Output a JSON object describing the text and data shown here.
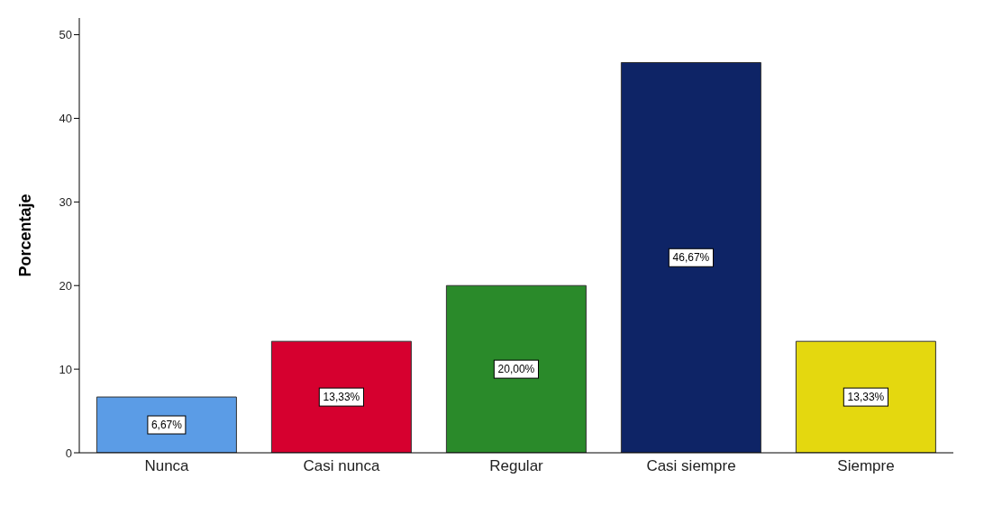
{
  "chart_data": {
    "type": "bar",
    "ylabel": "Porcentaje",
    "categories": [
      "Nunca",
      "Casi nunca",
      "Regular",
      "Casi siempre",
      "Siempre"
    ],
    "values": [
      6.67,
      13.33,
      20.0,
      46.67,
      13.33
    ],
    "colors": [
      "#5b9ce6",
      "#d6002f",
      "#2a8a2a",
      "#0e2466",
      "#e4d80f"
    ],
    "value_labels": [
      "6,67%",
      "13,33%",
      "20,00%",
      "46,67%",
      "13,33%"
    ],
    "ylim": [
      0,
      52
    ],
    "yticks": [
      0,
      10,
      20,
      30,
      40,
      50
    ],
    "grid": false,
    "legend": false
  }
}
